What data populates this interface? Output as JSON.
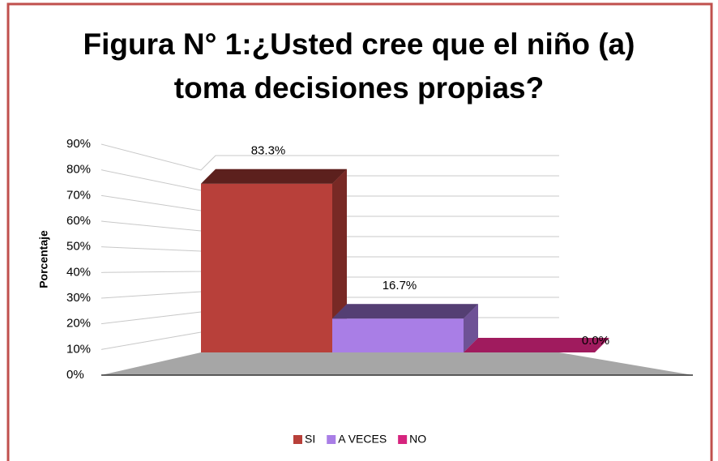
{
  "chart_data": {
    "type": "bar3d",
    "title": "Figura N° 1:¿Usted cree que el niño (a) toma decisiones propias?",
    "y_label": "Porcentaje",
    "categories": [
      "SI",
      "A VECES",
      "NO"
    ],
    "values": [
      83.3,
      16.7,
      0.0
    ],
    "value_labels": [
      "83.3%",
      "16.7%",
      "0.0%"
    ],
    "colors": [
      "#b8403a",
      "#a97ee6",
      "#d6247e"
    ],
    "ylim": [
      0,
      90
    ],
    "yticks": [
      {
        "value": 0,
        "label": "0%"
      },
      {
        "value": 10,
        "label": "10%"
      },
      {
        "value": 20,
        "label": "20%"
      },
      {
        "value": 30,
        "label": "30%"
      },
      {
        "value": 40,
        "label": "40%"
      },
      {
        "value": 50,
        "label": "50%"
      },
      {
        "value": 60,
        "label": "60%"
      },
      {
        "value": 70,
        "label": "70%"
      },
      {
        "value": 80,
        "label": "80%"
      },
      {
        "value": 90,
        "label": "90%"
      }
    ],
    "grid": true,
    "legend": "bottom"
  }
}
